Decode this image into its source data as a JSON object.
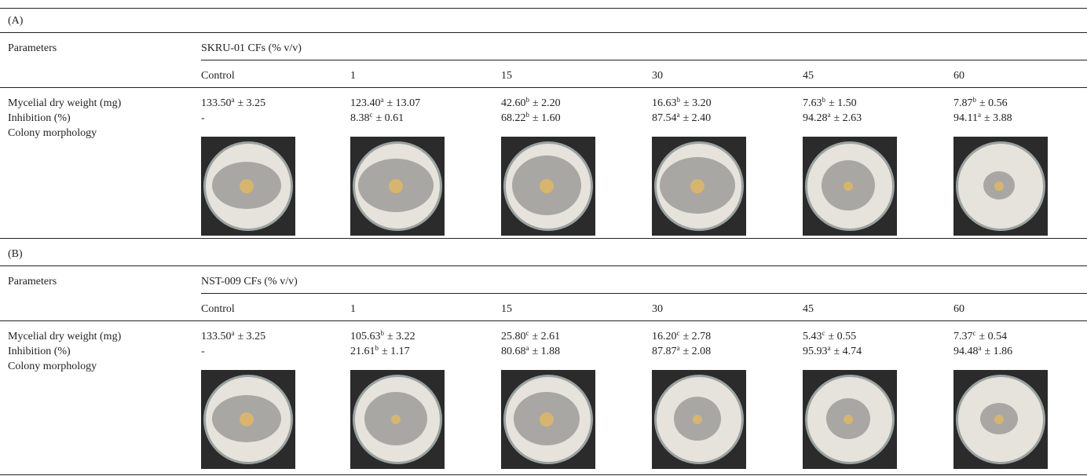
{
  "panels": [
    {
      "label": "(A)",
      "row_header": "Parameters",
      "group": "SKRU-01 CFs (% v/v)",
      "columns": [
        "Control",
        "1",
        "15",
        "30",
        "45",
        "60"
      ],
      "rows": [
        {
          "name": "Mycelial dry weight (mg)",
          "cells": [
            {
              "mean": "133.50",
              "letter": "a",
              "sd": "± 3.25"
            },
            {
              "mean": "123.40",
              "letter": "a",
              "sd": "± 13.07"
            },
            {
              "mean": "42.60",
              "letter": "b",
              "sd": "± 2.20"
            },
            {
              "mean": "16.63",
              "letter": "b",
              "sd": "± 3.20"
            },
            {
              "mean": "7.63",
              "letter": "b",
              "sd": "± 1.50"
            },
            {
              "mean": "7.87",
              "letter": "b",
              "sd": "± 0.56"
            }
          ]
        },
        {
          "name": "Inhibition (%)",
          "cells": [
            {
              "mean": "-"
            },
            {
              "mean": "8.38",
              "letter": "c",
              "sd": "± 0.61"
            },
            {
              "mean": "68.22",
              "letter": "b",
              "sd": "± 1.60"
            },
            {
              "mean": "87.54",
              "letter": "a",
              "sd": "± 2.40"
            },
            {
              "mean": "94.28",
              "letter": "a",
              "sd": "± 2.63"
            },
            {
              "mean": "94.11",
              "letter": "a",
              "sd": "± 3.88"
            }
          ]
        },
        {
          "name": "Colony morphology"
        }
      ]
    },
    {
      "label": "(B)",
      "row_header": "Parameters",
      "group": "NST-009 CFs (% v/v)",
      "columns": [
        "Control",
        "1",
        "15",
        "30",
        "45",
        "60"
      ],
      "rows": [
        {
          "name": "Mycelial dry weight (mg)",
          "cells": [
            {
              "mean": "133.50",
              "letter": "a",
              "sd": "± 3.25"
            },
            {
              "mean": "105.63",
              "letter": "b",
              "sd": "± 3.22"
            },
            {
              "mean": "25.80",
              "letter": "c",
              "sd": "± 2.61"
            },
            {
              "mean": "16.20",
              "letter": "c",
              "sd": "± 2.78"
            },
            {
              "mean": "5.43",
              "letter": "c",
              "sd": "± 0.55"
            },
            {
              "mean": "7.37",
              "letter": "c",
              "sd": "± 0.54"
            }
          ]
        },
        {
          "name": "Inhibition (%)",
          "cells": [
            {
              "mean": "-"
            },
            {
              "mean": "21.61",
              "letter": "b",
              "sd": "± 1.17"
            },
            {
              "mean": "80.68",
              "letter": "a",
              "sd": "± 1.88"
            },
            {
              "mean": "87.87",
              "letter": "a",
              "sd": "± 2.08"
            },
            {
              "mean": "95.93",
              "letter": "a",
              "sd": "± 4.74"
            },
            {
              "mean": "94.48",
              "letter": "a",
              "sd": "± 1.86"
            }
          ]
        },
        {
          "name": "Colony morphology"
        }
      ]
    }
  ]
}
